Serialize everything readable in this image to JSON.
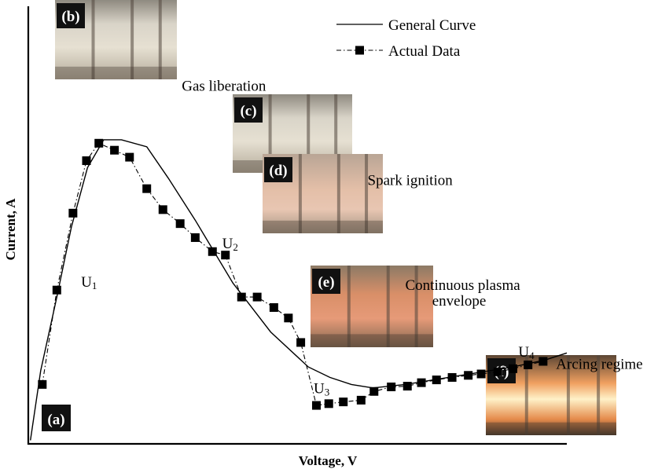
{
  "chart_data": {
    "type": "line",
    "title": "",
    "xlabel": "Voltage, V",
    "ylabel": "Current, A",
    "xlim": [
      0,
      100
    ],
    "ylim": [
      0,
      100
    ],
    "x_ticks": "none",
    "y_ticks": "none",
    "grid": false,
    "legend": {
      "placement": "top-right",
      "entries": [
        {
          "label": "General Curve",
          "style": "solid"
        },
        {
          "label": "Actual Data",
          "style": "dash-dot with square markers"
        }
      ]
    },
    "series": [
      {
        "name": "General Curve",
        "style": "solid",
        "points": [
          [
            0.4,
            1
          ],
          [
            2.3,
            21
          ],
          [
            5.3,
            42
          ],
          [
            8,
            62
          ],
          [
            11,
            79
          ],
          [
            14,
            87
          ],
          [
            17.3,
            87
          ],
          [
            22,
            85
          ],
          [
            26,
            76
          ],
          [
            31,
            64
          ],
          [
            38,
            46
          ],
          [
            45,
            32
          ],
          [
            52,
            22
          ],
          [
            56,
            19
          ],
          [
            60,
            17
          ],
          [
            64,
            16
          ],
          [
            70,
            17
          ],
          [
            80,
            19.5
          ],
          [
            90,
            22
          ],
          [
            96,
            24
          ],
          [
            100,
            26
          ]
        ]
      },
      {
        "name": "Actual Data",
        "style": "dash-dot",
        "marker": "square",
        "points": [
          [
            2.6,
            17
          ],
          [
            5.3,
            44
          ],
          [
            8.3,
            66
          ],
          [
            10.8,
            81
          ],
          [
            13.1,
            86
          ],
          [
            16,
            84
          ],
          [
            18.8,
            82
          ],
          [
            22,
            73
          ],
          [
            25,
            67
          ],
          [
            28.2,
            63
          ],
          [
            31,
            59
          ],
          [
            34.2,
            55
          ],
          [
            36.6,
            54
          ],
          [
            39.6,
            42
          ],
          [
            42.5,
            42
          ],
          [
            45.6,
            39
          ],
          [
            48.3,
            36
          ],
          [
            50.6,
            29
          ],
          [
            53.5,
            11
          ],
          [
            55.8,
            11.5
          ],
          [
            58.5,
            12
          ],
          [
            61.8,
            12.5
          ],
          [
            64.2,
            15
          ],
          [
            67.4,
            16.3
          ],
          [
            70.4,
            16.5
          ],
          [
            73,
            17.5
          ],
          [
            75.8,
            18.3
          ],
          [
            78.7,
            19
          ],
          [
            81.7,
            19.6
          ],
          [
            84.1,
            20
          ],
          [
            87.2,
            20.6
          ],
          [
            90,
            21.5
          ],
          [
            92.8,
            22.6
          ],
          [
            95.6,
            23.6
          ]
        ]
      }
    ],
    "annotations": [
      {
        "text": "U",
        "sub": "1",
        "x": 9.8,
        "y": 45
      },
      {
        "text": "U",
        "sub": "2",
        "x": 36,
        "y": 56
      },
      {
        "text": "U",
        "sub": "3",
        "x": 53,
        "y": 14.5
      },
      {
        "text": "U",
        "sub": "4",
        "x": 91,
        "y": 25
      },
      {
        "text": "Gas liberation",
        "x": 28.5,
        "y": 101
      },
      {
        "text": "Spark ignition",
        "x": 63,
        "y": 74
      },
      {
        "text": "Continuous plasma",
        "x": 70,
        "y": 44
      },
      {
        "text": "envelope",
        "x": 75,
        "y": 39.5
      },
      {
        "text": "Arcing regime",
        "x": 98,
        "y": 21.5
      }
    ],
    "photos": [
      {
        "label": "(b)",
        "tone": "clear"
      },
      {
        "label": "(c)",
        "tone": "clear"
      },
      {
        "label": "(d)",
        "tone": "faint-pink"
      },
      {
        "label": "(e)",
        "tone": "orange-glow"
      },
      {
        "label": "(f)",
        "tone": "bright-arc"
      },
      {
        "label": "(a)",
        "tone": "none"
      }
    ]
  }
}
